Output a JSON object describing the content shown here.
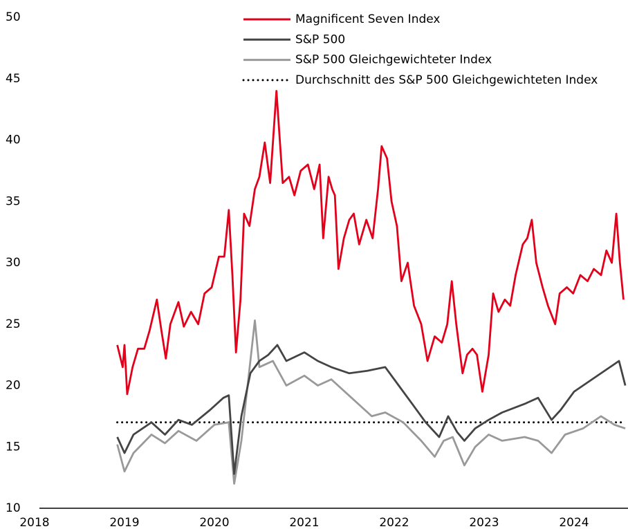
{
  "chart_data": {
    "type": "line",
    "xlim": [
      2018,
      2024.6
    ],
    "xticks": [
      2018,
      2019,
      2020,
      2021,
      2022,
      2023,
      2024
    ],
    "ylim": [
      10,
      50
    ],
    "yticks": [
      10,
      15,
      20,
      25,
      30,
      35,
      40,
      45,
      50
    ],
    "grid": false,
    "legend": "top-right",
    "series": [
      {
        "name": "Magnificent Seven Index",
        "color": "#e2001a",
        "style": "solid",
        "x": [
          2018.92,
          2018.98,
          2019.0,
          2019.03,
          2019.09,
          2019.15,
          2019.22,
          2019.28,
          2019.36,
          2019.41,
          2019.46,
          2019.51,
          2019.6,
          2019.66,
          2019.74,
          2019.82,
          2019.89,
          2019.97,
          2020.05,
          2020.11,
          2020.16,
          2020.2,
          2020.24,
          2020.29,
          2020.33,
          2020.39,
          2020.45,
          2020.5,
          2020.56,
          2020.62,
          2020.69,
          2020.76,
          2020.83,
          2020.89,
          2020.96,
          2021.04,
          2021.11,
          2021.17,
          2021.21,
          2021.27,
          2021.31,
          2021.34,
          2021.38,
          2021.44,
          2021.5,
          2021.55,
          2021.61,
          2021.69,
          2021.76,
          2021.82,
          2021.86,
          2021.92,
          2021.97,
          2022.03,
          2022.08,
          2022.15,
          2022.22,
          2022.3,
          2022.37,
          2022.45,
          2022.53,
          2022.59,
          2022.64,
          2022.69,
          2022.76,
          2022.81,
          2022.87,
          2022.92,
          2022.98,
          2023.05,
          2023.1,
          2023.16,
          2023.23,
          2023.29,
          2023.35,
          2023.43,
          2023.48,
          2023.53,
          2023.58,
          2023.65,
          2023.71,
          2023.79,
          2023.84,
          2023.92,
          2023.99,
          2024.07,
          2024.15,
          2024.22,
          2024.3,
          2024.36,
          2024.42,
          2024.47,
          2024.51,
          2024.55
        ],
        "values": [
          23.3,
          21.5,
          23.3,
          19.3,
          21.5,
          23,
          23,
          24.5,
          27,
          24.5,
          22.2,
          25,
          26.8,
          24.8,
          26,
          25,
          27.5,
          28,
          30.5,
          30.5,
          34.3,
          29,
          22.7,
          27,
          34,
          33,
          36,
          37,
          39.8,
          36.5,
          44,
          36.5,
          37,
          35.5,
          37.5,
          38,
          36,
          38,
          32,
          37,
          36,
          35.5,
          29.5,
          32,
          33.5,
          34,
          31.5,
          33.5,
          32,
          36,
          39.5,
          38.5,
          35,
          33,
          28.5,
          30,
          26.5,
          25,
          22,
          24,
          23.5,
          25,
          28.5,
          25,
          21,
          22.5,
          23,
          22.5,
          19.5,
          22.5,
          27.5,
          26,
          27,
          26.5,
          29,
          31.5,
          32,
          33.5,
          30,
          28,
          26.5,
          25,
          27.5,
          28,
          27.5,
          29,
          28.5,
          29.5,
          29,
          31,
          30,
          34,
          30,
          27
        ]
      },
      {
        "name": "S&P 500",
        "color": "#444444",
        "style": "solid",
        "x": [
          2018.92,
          2019.0,
          2019.1,
          2019.3,
          2019.45,
          2019.6,
          2019.75,
          2019.95,
          2020.1,
          2020.16,
          2020.22,
          2020.3,
          2020.4,
          2020.5,
          2020.6,
          2020.7,
          2020.8,
          2021.0,
          2021.15,
          2021.3,
          2021.5,
          2021.7,
          2021.9,
          2022.05,
          2022.2,
          2022.35,
          2022.5,
          2022.6,
          2022.7,
          2022.78,
          2022.9,
          2023.05,
          2023.2,
          2023.45,
          2023.6,
          2023.75,
          2023.85,
          2024.0,
          2024.2,
          2024.4,
          2024.5,
          2024.57
        ],
        "values": [
          15.8,
          14.5,
          16,
          17,
          16,
          17.2,
          16.8,
          18,
          19,
          19.2,
          12.8,
          17.5,
          21,
          22,
          22.5,
          23.3,
          22,
          22.7,
          22,
          21.5,
          21,
          21.2,
          21.5,
          20,
          18.5,
          17,
          15.8,
          17.5,
          16.2,
          15.5,
          16.5,
          17.2,
          17.8,
          18.5,
          19,
          17.2,
          18,
          19.5,
          20.5,
          21.5,
          22,
          20
        ]
      },
      {
        "name": "S&P 500 Gleichgewichteter Index",
        "color": "#999999",
        "style": "solid",
        "x": [
          2018.92,
          2019.0,
          2019.1,
          2019.3,
          2019.45,
          2019.6,
          2019.8,
          2020.0,
          2020.16,
          2020.22,
          2020.3,
          2020.4,
          2020.45,
          2020.5,
          2020.65,
          2020.8,
          2021.0,
          2021.15,
          2021.3,
          2021.45,
          2021.6,
          2021.75,
          2021.9,
          2022.1,
          2022.3,
          2022.45,
          2022.55,
          2022.65,
          2022.78,
          2022.9,
          2023.05,
          2023.2,
          2023.45,
          2023.6,
          2023.75,
          2023.9,
          2024.1,
          2024.3,
          2024.45,
          2024.57
        ],
        "values": [
          15.2,
          13,
          14.5,
          16,
          15.3,
          16.3,
          15.5,
          16.8,
          17,
          12,
          15.5,
          22,
          25.3,
          21.5,
          22,
          20,
          20.8,
          20,
          20.5,
          19.5,
          18.5,
          17.5,
          17.8,
          17,
          15.5,
          14.2,
          15.5,
          15.8,
          13.5,
          15,
          16,
          15.5,
          15.8,
          15.5,
          14.5,
          16,
          16.5,
          17.5,
          16.8,
          16.5
        ]
      },
      {
        "name": "Durchschnitt des S&P 500 Gleichgewichteten Index",
        "color": "#000000",
        "style": "dotted",
        "x": [
          2018.92,
          2024.57
        ],
        "values": [
          17,
          17
        ]
      }
    ]
  }
}
